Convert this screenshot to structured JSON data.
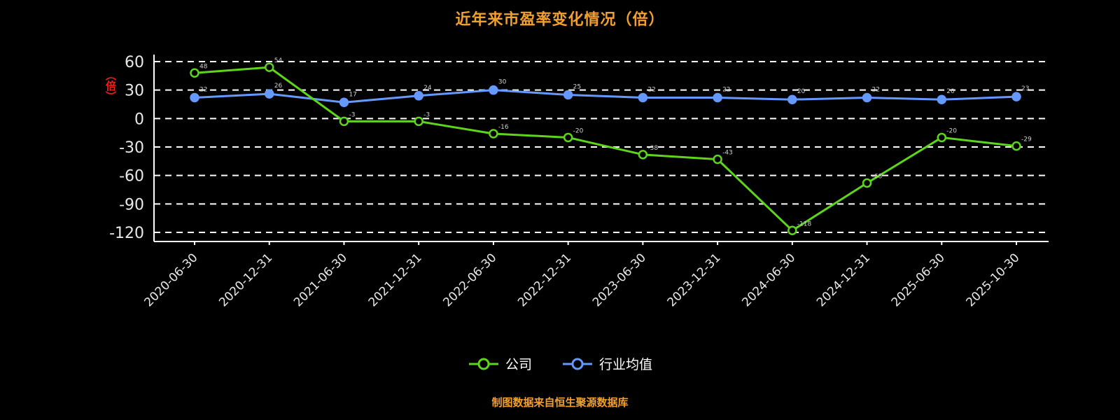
{
  "title": "近年来市盈率变化情况（倍）",
  "y_axis_unit_label": "（倍）",
  "footer": "制图数据来自恒生聚源数据库",
  "colors": {
    "title": "#f0a030",
    "footer": "#f0a030",
    "unit_label": "#ff1a1a",
    "axis": "#ffffff",
    "gridline": "#ffffff",
    "tick_label": "#e8e8e8",
    "company": "#5fd41d",
    "industry": "#6699ff",
    "point_label": "#d0d0d0"
  },
  "legend": [
    {
      "label": "公司",
      "color": "#5fd41d"
    },
    {
      "label": "行业均值",
      "color": "#6699ff"
    }
  ],
  "chart_data": {
    "type": "line",
    "title": "近年来市盈率变化情况（倍）",
    "xlabel": "",
    "ylabel": "（倍）",
    "categories": [
      "2020-06-30",
      "2020-12-31",
      "2021-06-30",
      "2021-12-31",
      "2022-06-30",
      "2022-12-31",
      "2023-06-30",
      "2023-12-31",
      "2024-06-30",
      "2024-12-31",
      "2025-06-30",
      "2025-10-30"
    ],
    "series": [
      {
        "name": "公司",
        "color": "#5fd41d",
        "marker": "hollow",
        "values": [
          48,
          54,
          -3,
          -3,
          -16,
          -20,
          -38,
          -43,
          -118,
          -68,
          -20,
          -29
        ]
      },
      {
        "name": "行业均值",
        "color": "#6699ff",
        "marker": "filled",
        "values": [
          22,
          26,
          17,
          24,
          30,
          25,
          22,
          22,
          20,
          22,
          20,
          23
        ]
      }
    ],
    "ylim": [
      -120,
      60
    ],
    "yticks": [
      60,
      30,
      0,
      -30,
      -60,
      -90,
      -120
    ],
    "grid": "dashed-horizontal",
    "legend_position": "bottom",
    "data_labels": true
  }
}
